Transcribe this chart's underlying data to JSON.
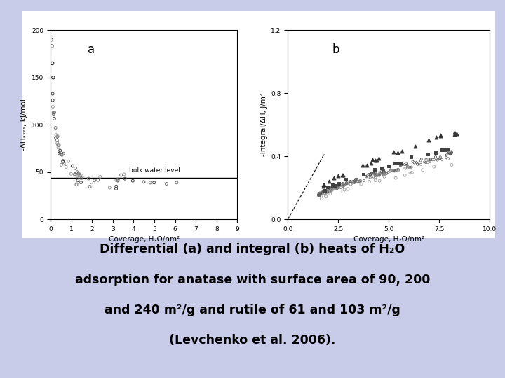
{
  "bg_color": "#c8cce8",
  "panel_bg": "#ffffff",
  "outer_box_bg": "#ffffff",
  "fig_width": 7.2,
  "fig_height": 5.4,
  "caption_lines": [
    "Differential (a) and integral (b) heats of H₂O",
    "adsorption for anatase with surface area of 90, 200",
    "and 240 m²/g and rutile of 61 and 103 m²/g",
    "(Levchenko et al. 2006)."
  ],
  "caption_fontsize": 12.5,
  "panel_a": {
    "label": "a",
    "xlabel": "Coverage, H₂O/nm²",
    "ylabel": "-ΔHₐₓₐₛ, kJ/mol",
    "xlim": [
      0,
      9
    ],
    "ylim": [
      0,
      200
    ],
    "xticks": [
      0,
      1,
      2,
      3,
      4,
      5,
      6,
      7,
      8,
      9
    ],
    "yticks": [
      0,
      50,
      100,
      150,
      200
    ],
    "bulk_water_level": 44,
    "bulk_water_label": "bulk water level"
  },
  "panel_b": {
    "label": "b",
    "xlabel": "Coverage, H₂O/nm²",
    "ylabel": "-Integral/ΔH, J/m²",
    "xlim": [
      0,
      10.0
    ],
    "ylim": [
      0,
      1.2
    ],
    "xticks": [
      0,
      2.5,
      5.0,
      7.5,
      10.0
    ],
    "yticks": [
      0.0,
      0.4,
      0.8,
      1.2
    ]
  }
}
